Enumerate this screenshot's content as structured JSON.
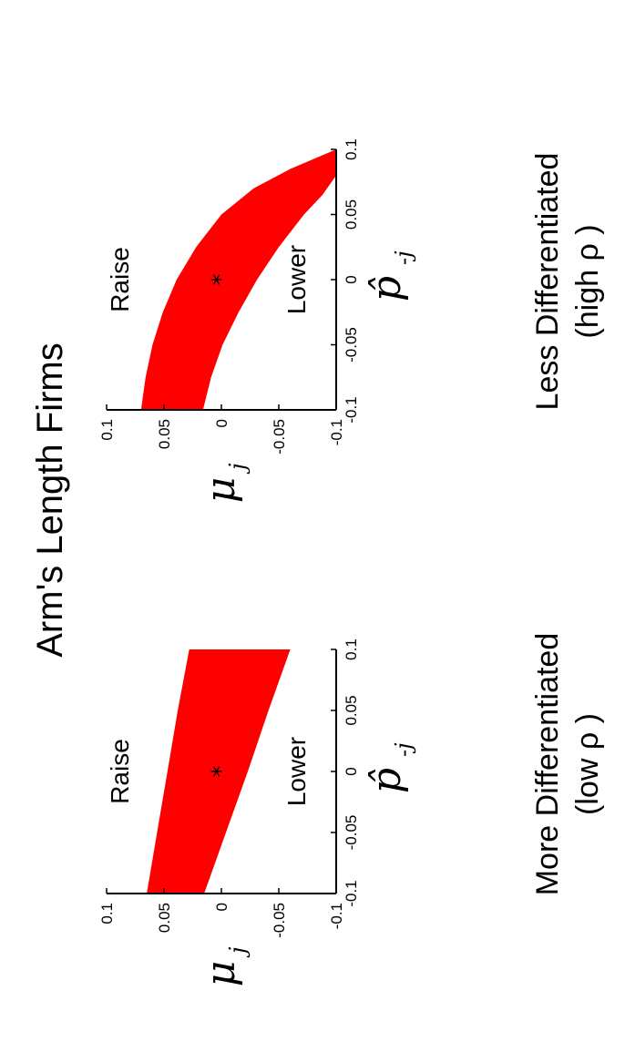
{
  "title": "Arm's Length Firms",
  "colors": {
    "band": "#ff0000",
    "axis": "#000000",
    "marker": "#000000"
  },
  "chart_data": [
    {
      "type": "area",
      "caption_line1": "More Differentiated",
      "caption_line2": "(low ρ )",
      "xlabel": "p̂",
      "xlabel_sub": "-j",
      "ylabel": "μ",
      "ylabel_sub": "j",
      "xlim": [
        -0.1,
        0.1
      ],
      "ylim": [
        -0.1,
        0.1
      ],
      "xticks": [
        "-0.1",
        "-0.05",
        "0",
        "0.05",
        "0.1"
      ],
      "yticks": [
        "-0.1",
        "-0.05",
        "0",
        "0.05",
        "0.1"
      ],
      "upper_boundary": {
        "x": [
          -0.1,
          -0.05,
          0,
          0.05,
          0.1
        ],
        "y": [
          0.065,
          0.056,
          0.047,
          0.038,
          0.028
        ]
      },
      "lower_boundary": {
        "x": [
          -0.1,
          -0.05,
          0,
          0.05,
          0.1
        ],
        "y": [
          0.015,
          -0.004,
          -0.023,
          -0.041,
          -0.06
        ]
      },
      "equilibrium_point": {
        "x": 0,
        "y": 0
      },
      "region_labels": {
        "above": "Raise",
        "below": "Lower"
      }
    },
    {
      "type": "area",
      "caption_line1": "Less Differentiated",
      "caption_line2": "(high  ρ )",
      "xlabel": "p̂",
      "xlabel_sub": "-j",
      "ylabel": "μ",
      "ylabel_sub": "j",
      "xlim": [
        -0.1,
        0.1
      ],
      "ylim": [
        -0.1,
        0.1
      ],
      "xticks": [
        "-0.1",
        "-0.05",
        "0",
        "0.05",
        "0.1"
      ],
      "yticks": [
        "-0.1",
        "-0.05",
        "0",
        "0.05",
        "0.1"
      ],
      "upper_boundary": {
        "x": [
          -0.1,
          -0.075,
          -0.05,
          -0.025,
          0,
          0.025,
          0.05,
          0.07,
          0.085,
          0.1
        ],
        "y": [
          0.07,
          0.066,
          0.06,
          0.051,
          0.039,
          0.022,
          0.0,
          -0.028,
          -0.06,
          -0.1
        ]
      },
      "lower_boundary": {
        "x": [
          -0.1,
          -0.075,
          -0.05,
          -0.025,
          0,
          0.025,
          0.05,
          0.065,
          0.08,
          0.1
        ],
        "y": [
          0.016,
          0.009,
          -0.001,
          -0.015,
          -0.031,
          -0.05,
          -0.072,
          -0.088,
          -0.1,
          -0.1
        ]
      },
      "equilibrium_point": {
        "x": 0,
        "y": 0
      },
      "region_labels": {
        "above": "Raise",
        "below": "Lower"
      }
    }
  ]
}
